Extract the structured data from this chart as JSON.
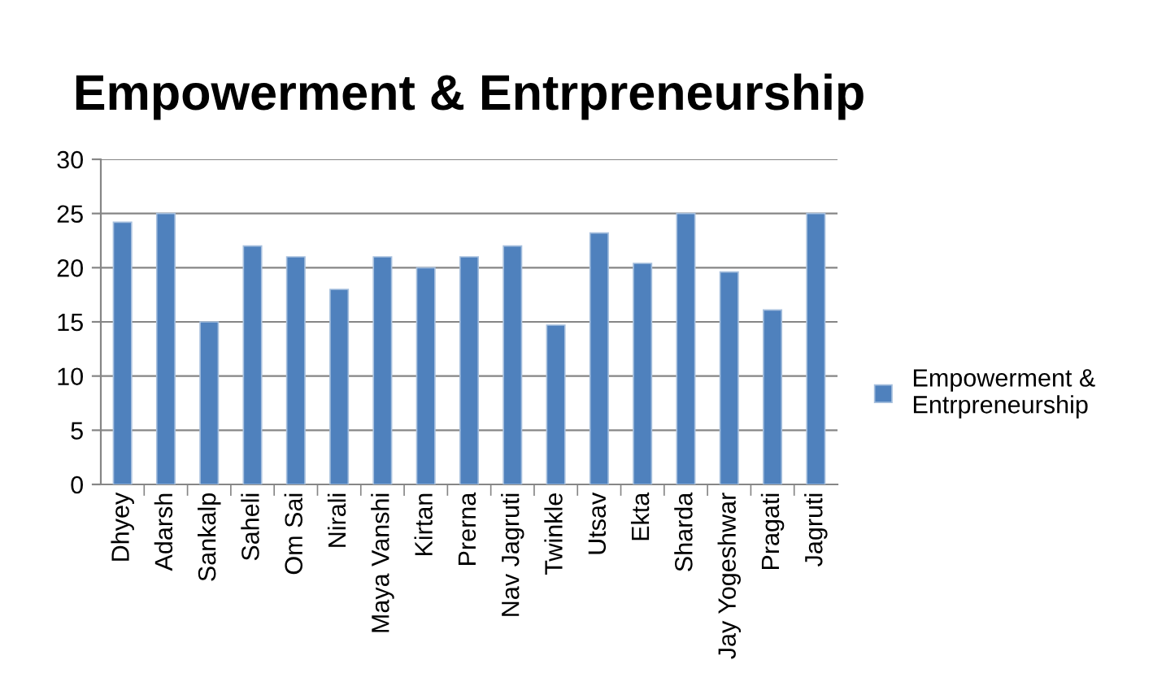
{
  "chart_data": {
    "type": "bar",
    "title": "Empowerment & Entrpreneurship",
    "categories": [
      "Dhyey",
      "Adarsh",
      "Sankalp",
      "Saheli",
      "Om Sai",
      "Nirali",
      "Maya Vanshi",
      "Kirtan",
      "Prerna",
      "Nav Jagruti",
      "Twinkle",
      "Utsav",
      "Ekta",
      "Sharda",
      "Jay Yogeshwar",
      "Pragati",
      "Jagruti"
    ],
    "series": [
      {
        "name": "Empowerment & Entrpreneurship",
        "color": "#4f81bd",
        "values": [
          24.2,
          25,
          15,
          22,
          21,
          18,
          21,
          20,
          21,
          22,
          14.7,
          23.2,
          20.4,
          25,
          19.6,
          16.1,
          25
        ]
      }
    ],
    "ylim": [
      0,
      30
    ],
    "yticks": [
      0,
      5,
      10,
      15,
      20,
      25,
      30
    ],
    "grid": "y",
    "legend": "right"
  }
}
